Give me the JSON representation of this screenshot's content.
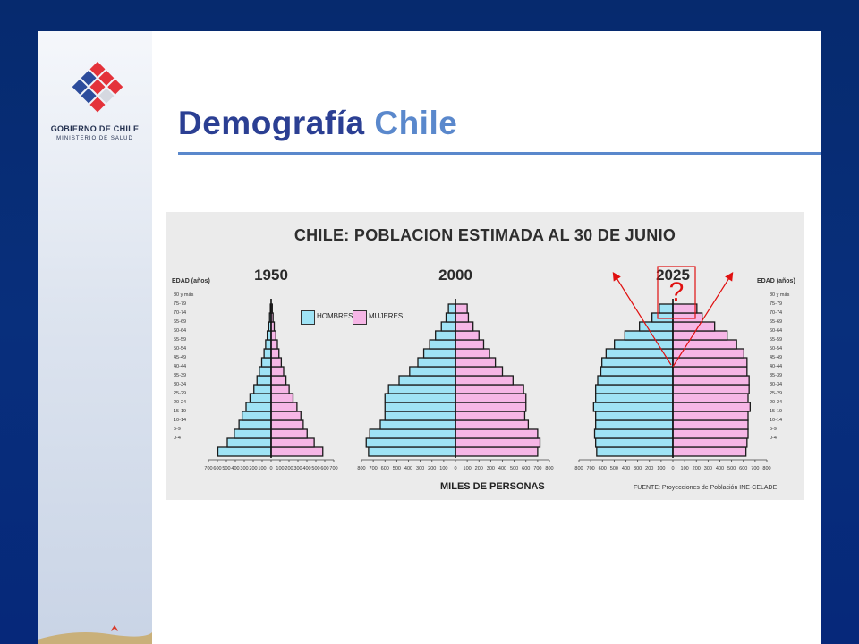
{
  "slide": {
    "title_part1": "Demografía",
    "title_part2": "Chile",
    "accent_color": "#2b3f93",
    "accent_color_light": "#5a88cc"
  },
  "logo": {
    "name": "GOBIERNO DE CHILE",
    "ministry": "MINISTERIO DE SALUD",
    "icon": "gobierno-de-chile-logo-icon"
  },
  "chart_data": {
    "type": "bar",
    "title": "CHILE: POBLACION ESTIMADA AL 30 DE JUNIO",
    "xlabel": "MILES DE PERSONAS",
    "ylabel": "EDAD (años)",
    "source": "FUENTE: Proyecciones de Población INE-CELADE",
    "colors": {
      "hombres": "#9fe3f5",
      "mujeres": "#f6b6e6"
    },
    "legend": [
      {
        "key": "hombres",
        "label": "HOMBRES"
      },
      {
        "key": "mujeres",
        "label": "MUJERES"
      }
    ],
    "age_groups": [
      "0-4",
      "5-9",
      "10-14",
      "15-19",
      "20-24",
      "25-29",
      "30-34",
      "35-39",
      "40-44",
      "45-49",
      "50-54",
      "55-59",
      "60-64",
      "65-69",
      "70-74",
      "75-79",
      "80 y más"
    ],
    "pyramids": [
      {
        "year": "1950",
        "xlim": 800,
        "tick_labels": [
          "700",
          "600",
          "500",
          "400",
          "300",
          "200",
          "100",
          "0",
          "100",
          "200",
          "300",
          "400",
          "500",
          "600",
          "700"
        ],
        "hombres": [
          680,
          560,
          470,
          410,
          370,
          320,
          270,
          220,
          180,
          150,
          120,
          90,
          70,
          50,
          30,
          20,
          10
        ],
        "mujeres": [
          660,
          550,
          460,
          410,
          380,
          330,
          280,
          230,
          190,
          160,
          130,
          100,
          80,
          60,
          40,
          25,
          15
        ]
      },
      {
        "year": "2000",
        "xlim": 800,
        "tick_labels": [
          "800",
          "700",
          "600",
          "500",
          "400",
          "300",
          "200",
          "100",
          "0",
          "100",
          "200",
          "300",
          "400",
          "500",
          "600",
          "700",
          "800"
        ],
        "hombres": [
          740,
          760,
          730,
          640,
          600,
          600,
          600,
          570,
          480,
          390,
          320,
          270,
          220,
          170,
          120,
          80,
          60
        ],
        "mujeres": [
          700,
          720,
          700,
          620,
          590,
          600,
          600,
          580,
          490,
          400,
          340,
          290,
          240,
          200,
          150,
          110,
          100
        ]
      },
      {
        "year": "2025",
        "xlim": 900,
        "tick_labels": [
          "800",
          "700",
          "600",
          "500",
          "400",
          "300",
          "200",
          "100",
          "0",
          "100",
          "200",
          "300",
          "400",
          "500",
          "600",
          "700",
          "800"
        ],
        "hombres": [
          730,
          740,
          750,
          740,
          740,
          760,
          740,
          740,
          720,
          690,
          680,
          640,
          560,
          460,
          320,
          200,
          130
        ],
        "mujeres": [
          700,
          710,
          720,
          720,
          720,
          740,
          720,
          730,
          730,
          710,
          710,
          680,
          610,
          520,
          400,
          280,
          230
        ]
      }
    ]
  },
  "annotation": {
    "label": "?",
    "color": "#e01010"
  }
}
